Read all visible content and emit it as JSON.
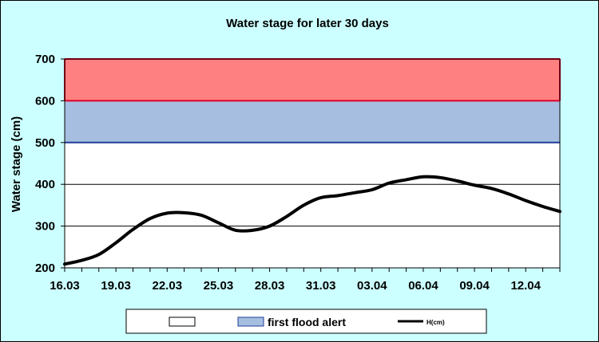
{
  "chart_data": {
    "type": "line",
    "title": "Water stage for later 30 days",
    "xlabel": "",
    "ylabel": "Water stage (cm)",
    "ylim": [
      200,
      700
    ],
    "yticks": [
      "200",
      "300",
      "400",
      "500",
      "600",
      "700"
    ],
    "xticks": [
      "16.03",
      "19.03",
      "22.03",
      "25.03",
      "28.03",
      "31.03",
      "03.04",
      "06.04",
      "09.04",
      "12.04"
    ],
    "x": [
      "16.03",
      "17.03",
      "18.03",
      "19.03",
      "20.03",
      "21.03",
      "22.03",
      "23.03",
      "24.03",
      "25.03",
      "26.03",
      "27.03",
      "28.03",
      "29.03",
      "30.03",
      "31.03",
      "01.04",
      "02.04",
      "03.04",
      "04.04",
      "05.04",
      "06.04",
      "07.04",
      "08.04",
      "09.04",
      "10.04",
      "11.04",
      "12.04",
      "13.04",
      "14.04"
    ],
    "bands": [
      {
        "name": "",
        "from": 400,
        "to": 500,
        "color": "#ffffff"
      },
      {
        "name": "first flood alert",
        "from": 500,
        "to": 600,
        "color": "#a6bfe0"
      },
      {
        "name": "",
        "from": 600,
        "to": 700,
        "color": "#ff8080"
      }
    ],
    "band_edges": [
      {
        "value": 500,
        "color": "#1f3d99"
      },
      {
        "value": 600,
        "color": "#e0002a"
      },
      {
        "value": 700,
        "color": "#e0002a"
      }
    ],
    "series": [
      {
        "name": "H(cm)",
        "color": "#000000",
        "values": [
          209,
          218,
          232,
          260,
          292,
          318,
          331,
          332,
          326,
          308,
          290,
          290,
          300,
          323,
          350,
          368,
          373,
          380,
          387,
          403,
          411,
          418,
          416,
          408,
          398,
          390,
          377,
          361,
          347,
          335
        ]
      }
    ],
    "legend": {
      "position": "bottom",
      "entries": [
        {
          "label": "",
          "swatch": "#ffffff"
        },
        {
          "label": "first flood alert",
          "swatch": "#a6bfe0"
        },
        {
          "label": "H(cm)",
          "swatch": "line"
        }
      ]
    },
    "grid": true
  }
}
